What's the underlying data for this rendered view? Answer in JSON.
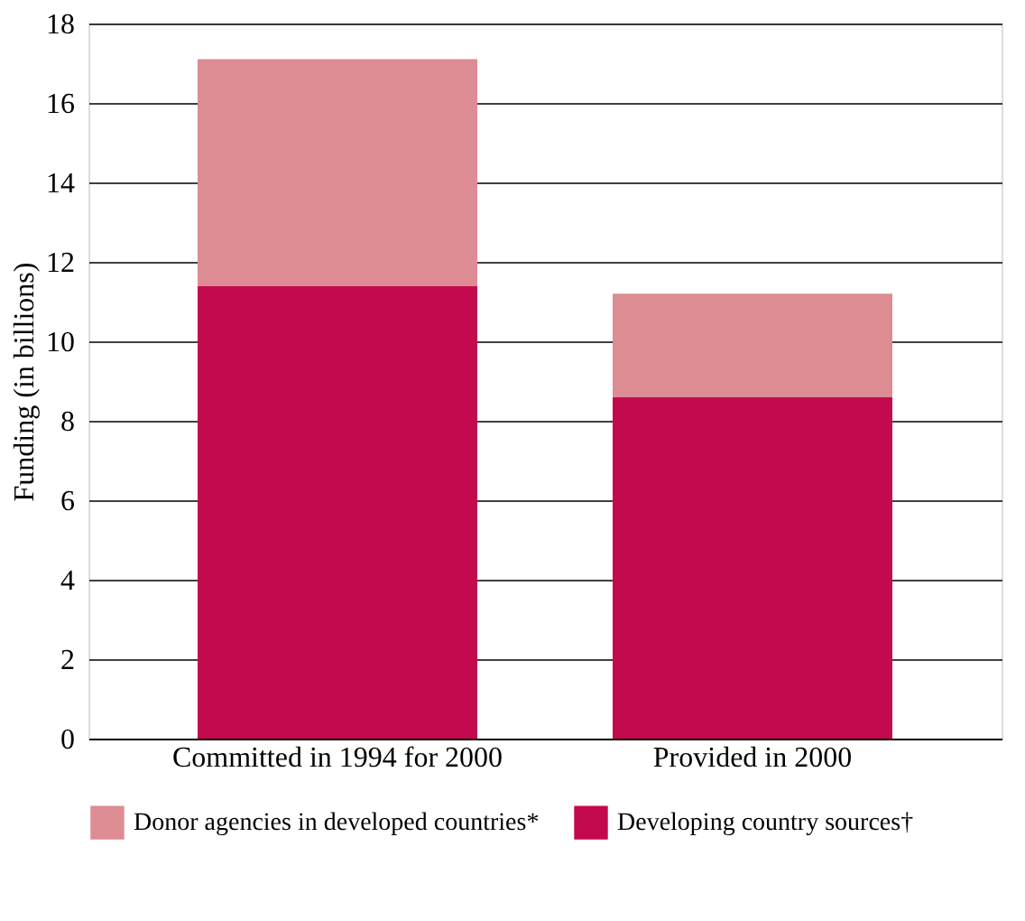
{
  "chart_data": {
    "type": "bar",
    "stacked": true,
    "ylabel": "Funding (in billions)",
    "categories": [
      "Committed in 1994 for 2000",
      "Provided in 2000"
    ],
    "series": [
      {
        "name": "Developing country sources†",
        "color": "#c40a4e",
        "values": [
          11.4,
          8.6
        ]
      },
      {
        "name": "Donor agencies in developed countries*",
        "color": "#dd8c93",
        "values": [
          5.7,
          2.6
        ]
      }
    ],
    "ylim": [
      0,
      18
    ],
    "yticks": [
      0,
      2,
      4,
      6,
      8,
      10,
      12,
      14,
      16,
      18
    ],
    "grid": "y",
    "legend": "bottom"
  }
}
